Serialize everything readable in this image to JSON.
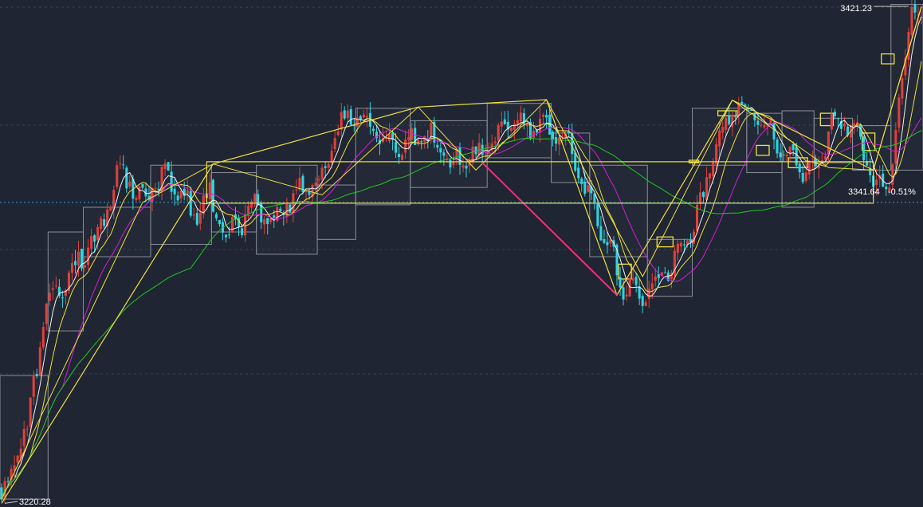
{
  "colors": {
    "background": "#1f2532",
    "grid": "#3a4250",
    "up": "#e0403c",
    "down": "#2fd4e0",
    "ma_white": "#f2f2f2",
    "ma_yellow": "#f0e040",
    "ma_magenta": "#d020d8",
    "ma_green": "#20c820",
    "zigzag_pink": "#ff2a7a",
    "box_gray": "#8a8f98",
    "box_yellow": "#f0e040"
  },
  "chart_data": {
    "type": "candlestick",
    "title": "",
    "xlabel": "",
    "ylabel": "",
    "ylim": [
      3218.8,
      3423.8
    ],
    "grid": "horizontal dashed",
    "annotations": {
      "max_label": "3421.23",
      "min_label": "3220.28",
      "last_label": "3341.64",
      "change_label": "-0.51%"
    },
    "support_level": 3341.64,
    "resistance_level": 3358.4,
    "waypoints": [
      [
        0,
        3222
      ],
      [
        8,
        3251
      ],
      [
        14,
        3302
      ],
      [
        21,
        3312
      ],
      [
        30,
        3329
      ],
      [
        37,
        3357
      ],
      [
        43,
        3344
      ],
      [
        52,
        3353
      ],
      [
        60,
        3337
      ],
      [
        65,
        3344
      ],
      [
        70,
        3327
      ],
      [
        78,
        3340
      ],
      [
        86,
        3335
      ],
      [
        93,
        3349
      ],
      [
        98,
        3347
      ],
      [
        106,
        3376
      ],
      [
        113,
        3377
      ],
      [
        119,
        3366
      ],
      [
        127,
        3366
      ],
      [
        134,
        3368
      ],
      [
        140,
        3357
      ],
      [
        147,
        3360
      ],
      [
        155,
        3370
      ],
      [
        162,
        3374
      ],
      [
        170,
        3372
      ],
      [
        176,
        3370
      ],
      [
        182,
        3346
      ],
      [
        188,
        3330
      ],
      [
        194,
        3308
      ],
      [
        200,
        3304
      ],
      [
        206,
        3313
      ],
      [
        212,
        3322
      ],
      [
        218,
        3340
      ],
      [
        224,
        3370
      ],
      [
        230,
        3380
      ],
      [
        236,
        3376
      ],
      [
        242,
        3367
      ],
      [
        248,
        3356
      ],
      [
        254,
        3354
      ],
      [
        260,
        3376
      ],
      [
        266,
        3372
      ],
      [
        272,
        3352
      ],
      [
        276,
        3345
      ],
      [
        280,
        3380
      ],
      [
        284,
        3421
      ],
      [
        287,
        3417
      ]
    ],
    "ma_series": [
      {
        "period": 5,
        "color_key": "ma_white"
      },
      {
        "period": 10,
        "color_key": "ma_yellow"
      },
      {
        "period": 20,
        "color_key": "ma_magenta"
      },
      {
        "period": 60,
        "color_key": "ma_green"
      }
    ],
    "zigzag": [
      [
        0,
        3220.28
      ],
      [
        66,
        3357.5
      ],
      [
        130,
        3380.5
      ],
      [
        170,
        3383.5
      ],
      [
        192,
        3304.5
      ],
      [
        228,
        3383.3
      ],
      [
        272,
        3355
      ],
      [
        287,
        3421.23
      ]
    ],
    "zigzag_secondary": [
      [
        0,
        3222
      ],
      [
        44,
        3342
      ],
      [
        66,
        3357.5
      ],
      [
        100,
        3345
      ],
      [
        130,
        3380.5
      ],
      [
        148,
        3355
      ],
      [
        170,
        3383.5
      ],
      [
        200,
        3312
      ],
      [
        228,
        3383.3
      ],
      [
        258,
        3356
      ],
      [
        272,
        3355
      ],
      [
        287,
        3421
      ]
    ],
    "gray_boxes": [
      [
        0,
        15,
        3222,
        3272
      ],
      [
        15,
        26,
        3290,
        3330
      ],
      [
        26,
        47,
        3320,
        3340
      ],
      [
        47,
        66,
        3325,
        3357
      ],
      [
        66,
        80,
        3330,
        3354
      ],
      [
        80,
        99,
        3321,
        3357
      ],
      [
        99,
        111,
        3327,
        3349
      ],
      [
        111,
        128,
        3341,
        3380
      ],
      [
        128,
        152,
        3348,
        3375
      ],
      [
        152,
        172,
        3360,
        3382
      ],
      [
        172,
        184,
        3350,
        3370
      ],
      [
        184,
        202,
        3320,
        3357
      ],
      [
        202,
        216,
        3304,
        3327
      ],
      [
        216,
        233,
        3357,
        3380
      ],
      [
        233,
        244,
        3354,
        3378
      ],
      [
        244,
        254,
        3340,
        3379
      ],
      [
        254,
        266,
        3358,
        3376
      ],
      [
        266,
        278,
        3355,
        3373
      ],
      [
        278,
        288,
        3355,
        3422
      ]
    ],
    "yellow_boxes": [
      [
        193,
        197,
        3311,
        3317
      ],
      [
        205,
        210,
        3324,
        3328
      ],
      [
        215,
        218,
        3358,
        3359
      ],
      [
        224,
        230,
        3377,
        3379
      ],
      [
        236,
        240,
        3361,
        3365
      ],
      [
        246,
        252,
        3356,
        3360
      ],
      [
        256,
        260,
        3373,
        3378
      ],
      [
        269,
        273,
        3363,
        3370
      ],
      [
        275,
        279,
        3398,
        3402
      ]
    ]
  }
}
